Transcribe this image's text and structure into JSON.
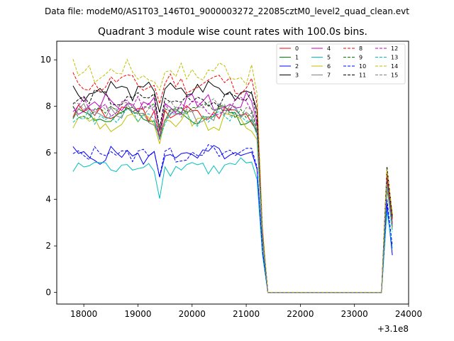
{
  "suptitle": "Data file: modeM0/AS1T03_146T01_9000003272_22085cztM0_level2_quad_clean.evt",
  "chart_data": {
    "type": "line",
    "title": "Quadrant 3 module wise count rates with 100.0s bins.",
    "xlabel": "",
    "ylabel": "",
    "x_offset_label": "+3.1e8",
    "xlim": [
      17500,
      24000
    ],
    "ylim": [
      -0.5,
      10.8
    ],
    "xticks": [
      18000,
      19000,
      20000,
      21000,
      22000,
      23000,
      24000
    ],
    "xtick_labels": [
      "18000",
      "19000",
      "20000",
      "21000",
      "22000",
      "23000",
      "24000"
    ],
    "yticks": [
      0,
      2,
      4,
      6,
      8,
      10
    ],
    "ytick_labels": [
      "0",
      "2",
      "4",
      "6",
      "8",
      "10"
    ],
    "grid": false,
    "legend_position": "top-right",
    "legend_columns": 4,
    "x_start": 17800,
    "x_step": 100,
    "n_active": 36,
    "gap_until": 23500,
    "x_end": 23700,
    "series": [
      {
        "name": "0",
        "color": "#ff0000",
        "dashed": false,
        "base": 7.7,
        "tail": [
          4.4,
          3.0
        ],
        "amp": 0.3
      },
      {
        "name": "1",
        "color": "#008000",
        "dashed": false,
        "base": 7.6,
        "tail": [
          4.8,
          2.8
        ],
        "amp": 0.3
      },
      {
        "name": "2",
        "color": "#0000ff",
        "dashed": false,
        "base": 5.9,
        "tail": [
          3.8,
          1.6
        ],
        "amp": 0.3
      },
      {
        "name": "3",
        "color": "#000000",
        "dashed": false,
        "base": 8.7,
        "tail": [
          5.0,
          3.2
        ],
        "amp": 0.35
      },
      {
        "name": "4",
        "color": "#bf00bf",
        "dashed": false,
        "base": 8.1,
        "tail": [
          4.6,
          2.9
        ],
        "amp": 0.35
      },
      {
        "name": "5",
        "color": "#00bfbf",
        "dashed": false,
        "base": 5.4,
        "tail": [
          3.5,
          1.9
        ],
        "amp": 0.3
      },
      {
        "name": "6",
        "color": "#bfbf00",
        "dashed": false,
        "base": 7.3,
        "tail": [
          4.5,
          2.7
        ],
        "amp": 0.35
      },
      {
        "name": "7",
        "color": "#808080",
        "dashed": false,
        "base": 7.7,
        "tail": [
          4.7,
          2.8
        ],
        "amp": 0.35
      },
      {
        "name": "8",
        "color": "#ff0000",
        "dashed": true,
        "base": 9.0,
        "tail": [
          5.2,
          3.1
        ],
        "amp": 0.35
      },
      {
        "name": "9",
        "color": "#008000",
        "dashed": true,
        "base": 7.8,
        "tail": [
          4.9,
          3.0
        ],
        "amp": 0.3
      },
      {
        "name": "10",
        "color": "#0000ff",
        "dashed": true,
        "base": 6.0,
        "tail": [
          4.0,
          2.0
        ],
        "amp": 0.3
      },
      {
        "name": "11",
        "color": "#000000",
        "dashed": true,
        "base": 8.3,
        "tail": [
          5.4,
          3.3
        ],
        "amp": 0.3
      },
      {
        "name": "12",
        "color": "#bf00bf",
        "dashed": true,
        "base": 8.0,
        "tail": [
          4.9,
          2.9
        ],
        "amp": 0.3
      },
      {
        "name": "13",
        "color": "#00bfbf",
        "dashed": true,
        "base": 7.5,
        "tail": [
          4.6,
          2.6
        ],
        "amp": 0.3
      },
      {
        "name": "14",
        "color": "#bfbf00",
        "dashed": true,
        "base": 9.5,
        "tail": [
          5.3,
          3.4
        ],
        "amp": 0.4
      },
      {
        "name": "15",
        "color": "#808080",
        "dashed": true,
        "base": 7.9,
        "tail": [
          4.7,
          2.9
        ],
        "amp": 0.3
      }
    ]
  }
}
